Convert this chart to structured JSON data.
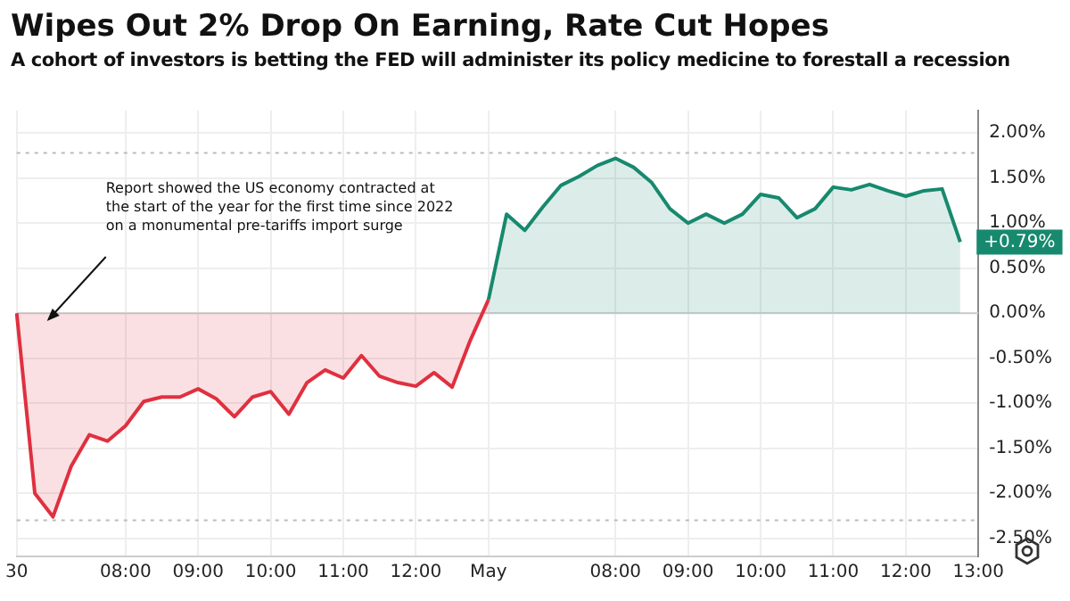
{
  "chart_data": {
    "type": "area",
    "title": "Wipes Out 2% Drop On Earning, Rate Cut Hopes",
    "subtitle": "A cohort of investors is betting the FED will administer its policy medicine to forestall a recession",
    "categories": [
      "30",
      null,
      null,
      null,
      null,
      null,
      "08:00",
      null,
      null,
      null,
      "09:00",
      null,
      null,
      null,
      "10:00",
      null,
      null,
      null,
      "11:00",
      null,
      null,
      null,
      "12:00",
      null,
      null,
      null,
      "May",
      null,
      null,
      null,
      null,
      null,
      null,
      "08:00",
      null,
      null,
      null,
      "09:00",
      null,
      null,
      null,
      "10:00",
      null,
      null,
      null,
      "11:00",
      null,
      null,
      null,
      "12:00",
      null,
      null,
      null,
      "13:00"
    ],
    "series": [
      {
        "color": "#e0303f",
        "values": [
          0.0,
          -2.0,
          -2.26,
          -1.7,
          -1.35,
          -1.42,
          -1.25,
          -0.98,
          -0.93,
          -0.93,
          -0.84,
          -0.95,
          -1.15,
          -0.93,
          -0.87,
          -1.12,
          -0.77,
          -0.63,
          -0.72,
          -0.47,
          -0.7,
          -0.77,
          -0.81,
          -0.66,
          -0.82,
          -0.3,
          0.15,
          null,
          null,
          null,
          null,
          null,
          null,
          null,
          null,
          null,
          null,
          null,
          null,
          null,
          null,
          null,
          null,
          null,
          null,
          null,
          null,
          null,
          null,
          null,
          null,
          null,
          null,
          null
        ]
      },
      {
        "color": "#17896e",
        "values": [
          null,
          null,
          null,
          null,
          null,
          null,
          null,
          null,
          null,
          null,
          null,
          null,
          null,
          null,
          null,
          null,
          null,
          null,
          null,
          null,
          null,
          null,
          null,
          null,
          null,
          null,
          0.15,
          1.1,
          0.92,
          1.18,
          1.42,
          1.52,
          1.64,
          1.72,
          1.62,
          1.45,
          1.16,
          1.0,
          1.1,
          1.0,
          1.1,
          1.32,
          1.28,
          1.06,
          1.16,
          1.4,
          1.37,
          1.43,
          1.36,
          1.3,
          1.36,
          1.38,
          0.79,
          null
        ]
      }
    ],
    "ylim": [
      -2.7,
      2.25
    ],
    "yticks": [
      {
        "value": -2.5,
        "label": "-2.50%"
      },
      {
        "value": -2,
        "label": "-2.00%"
      },
      {
        "value": -1.5,
        "label": "-1.50%"
      },
      {
        "value": -1,
        "label": "-1.00%"
      },
      {
        "value": -0.5,
        "label": "-0.50%"
      },
      {
        "value": 0,
        "label": "0.00%"
      },
      {
        "value": 0.5,
        "label": "0.50%"
      },
      {
        "value": 1,
        "label": "1.00%"
      },
      {
        "value": 1.5,
        "label": "1.50%"
      },
      {
        "value": 2,
        "label": "2.00%"
      }
    ],
    "ref_lines": [
      {
        "axis": "y",
        "value": 0,
        "color": "#cccccc",
        "line_style": "solid"
      },
      {
        "axis": "y",
        "value": 1.78,
        "color": "#bbbbbb",
        "line_style": "dotted"
      },
      {
        "axis": "y",
        "value": -2.3,
        "color": "#bbbbbb",
        "line_style": "dotted"
      }
    ],
    "annotations": [
      "Report showed the US economy contracted at\nthe start of the year for the first time since 2022\non a monumental pre-tariffs import surge",
      "+0.79%"
    ],
    "grid": true,
    "legend": false,
    "marker": "none",
    "line_style": "solid"
  }
}
